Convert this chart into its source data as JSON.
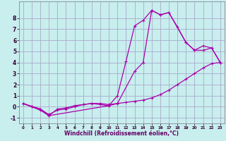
{
  "xlabel": "Windchill (Refroidissement éolien,°C)",
  "bg_color": "#c8eeee",
  "grid_color": "#aaaacc",
  "line_color": "#aa00aa",
  "marker": "+",
  "xmin": -0.5,
  "xmax": 23.5,
  "ymin": -1.5,
  "ymax": 9.5,
  "line1_x": [
    0,
    1,
    2,
    3,
    4,
    5,
    6,
    7,
    8,
    9,
    10,
    11,
    12,
    13,
    14,
    15,
    16,
    17,
    18,
    19,
    20,
    21,
    22,
    23
  ],
  "line1_y": [
    0.3,
    0.0,
    -0.3,
    -0.8,
    -0.2,
    -0.1,
    0.1,
    0.2,
    0.3,
    0.2,
    0.1,
    1.0,
    4.1,
    7.3,
    7.8,
    8.7,
    8.3,
    8.5,
    7.2,
    5.8,
    5.1,
    5.1,
    5.3,
    4.0
  ],
  "line2_x": [
    0,
    1,
    2,
    3,
    4,
    5,
    6,
    7,
    8,
    9,
    10,
    11,
    12,
    13,
    14,
    15,
    16,
    17,
    18,
    19,
    20,
    21,
    22,
    23
  ],
  "line2_y": [
    0.3,
    0.0,
    -0.2,
    -0.7,
    -0.3,
    -0.2,
    0.0,
    0.2,
    0.3,
    0.3,
    0.2,
    0.3,
    0.4,
    0.5,
    0.6,
    0.8,
    1.1,
    1.5,
    2.0,
    2.5,
    3.0,
    3.5,
    3.9,
    4.0
  ],
  "line3_x": [
    0,
    2,
    3,
    10,
    11,
    13,
    14,
    15,
    16,
    17,
    19,
    20,
    21,
    22,
    23
  ],
  "line3_y": [
    0.3,
    -0.2,
    -0.8,
    0.1,
    0.3,
    3.2,
    4.0,
    8.7,
    8.3,
    8.5,
    5.8,
    5.1,
    5.5,
    5.3,
    4.0
  ],
  "xticks": [
    0,
    1,
    2,
    3,
    4,
    5,
    6,
    7,
    8,
    9,
    10,
    11,
    12,
    13,
    14,
    15,
    16,
    17,
    18,
    19,
    20,
    21,
    22,
    23
  ],
  "yticks": [
    -1,
    0,
    1,
    2,
    3,
    4,
    5,
    6,
    7,
    8
  ],
  "xlabel_fontsize": 5.5,
  "xlabel_color": "#660066",
  "xtick_fontsize": 4.0,
  "ytick_fontsize": 5.5,
  "marker_size": 3,
  "linewidth": 0.9
}
